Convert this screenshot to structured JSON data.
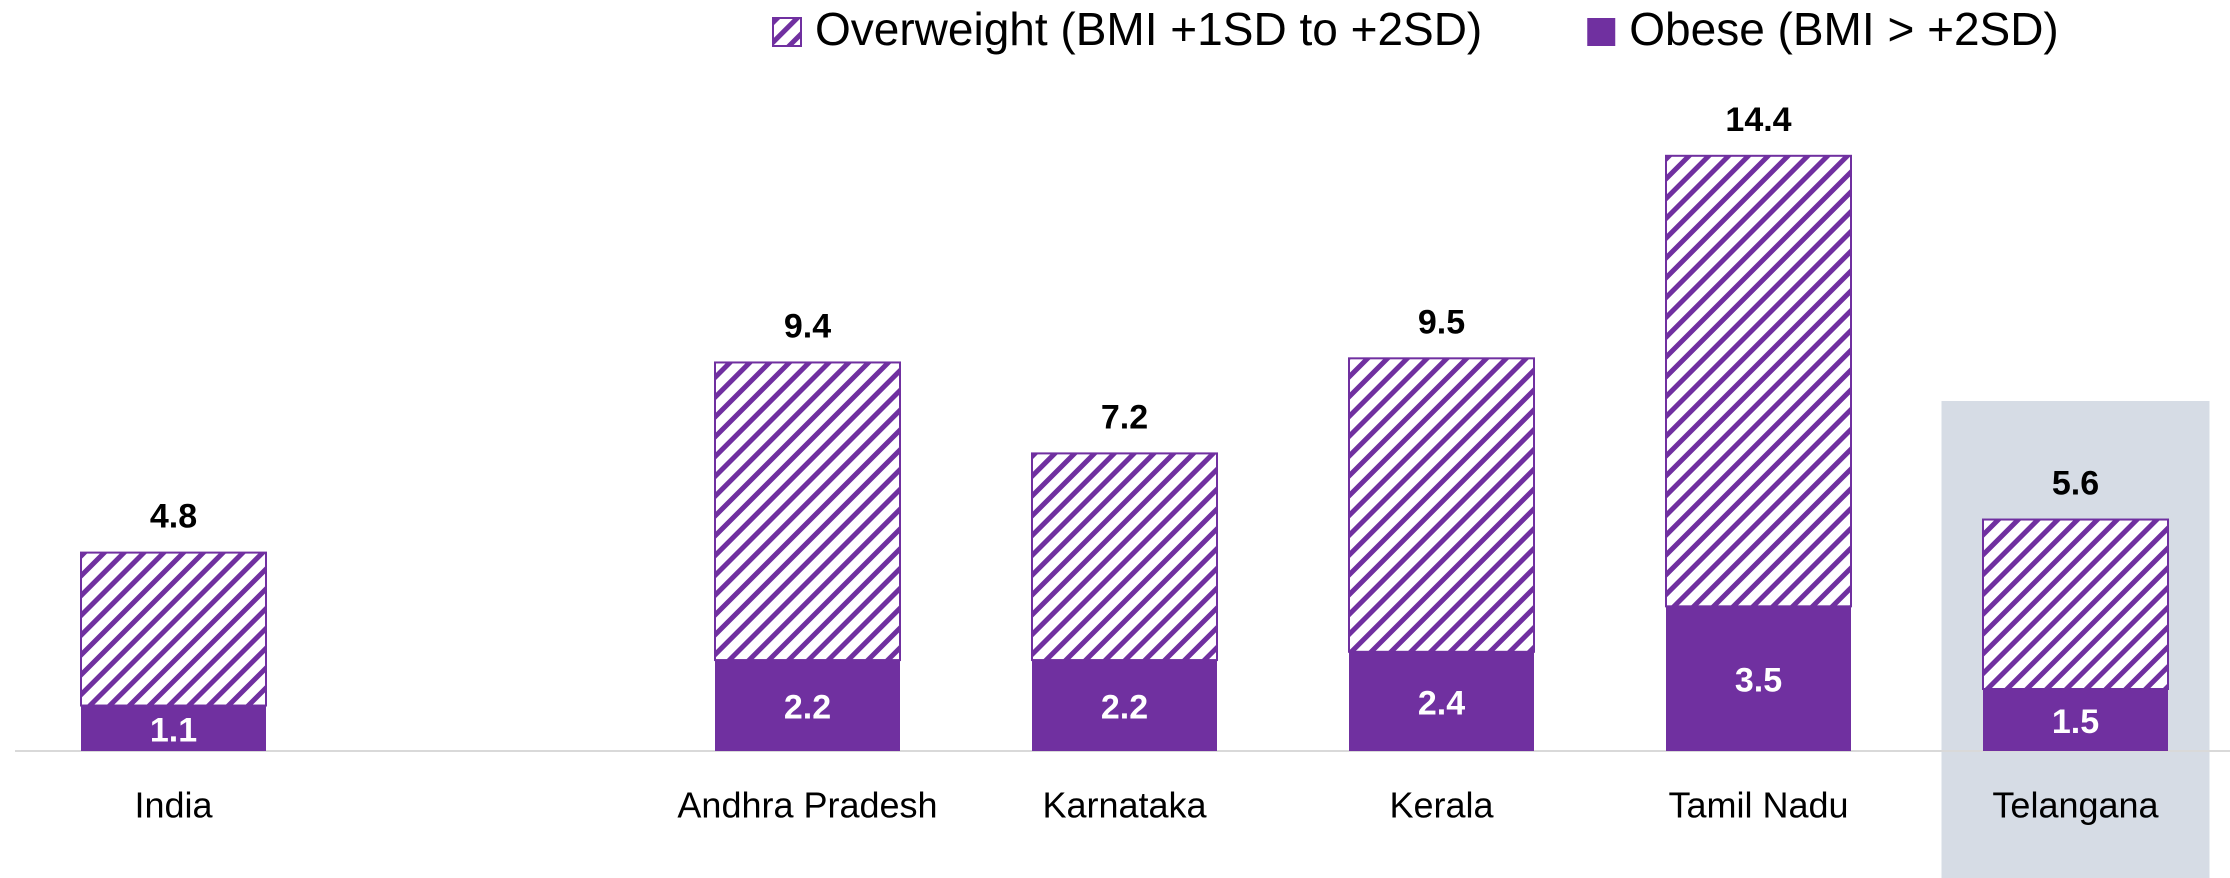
{
  "chart_data": {
    "type": "stacked_bar",
    "categories": [
      "India",
      null,
      "Andhra Pradesh",
      "Karnataka",
      "Kerala",
      "Tamil Nadu",
      "Telangana"
    ],
    "series": [
      {
        "name": "Obese (BMI > +2SD)",
        "color": "#7030a0",
        "fill": "solid",
        "values": [
          1.1,
          null,
          2.2,
          2.2,
          2.4,
          3.5,
          1.5
        ]
      },
      {
        "name": "Overweight (BMI +1SD to +2SD)",
        "color": "#7030a0",
        "fill": "hatch",
        "values": [
          3.7,
          null,
          7.2,
          5.0,
          7.1,
          10.9,
          4.1
        ]
      }
    ],
    "totals": [
      4.8,
      null,
      9.4,
      7.2,
      9.5,
      14.4,
      5.6
    ],
    "ylim": [
      0,
      15
    ],
    "highlight": {
      "category_index": 6,
      "color": "#d6dce5"
    },
    "legend": "top"
  }
}
